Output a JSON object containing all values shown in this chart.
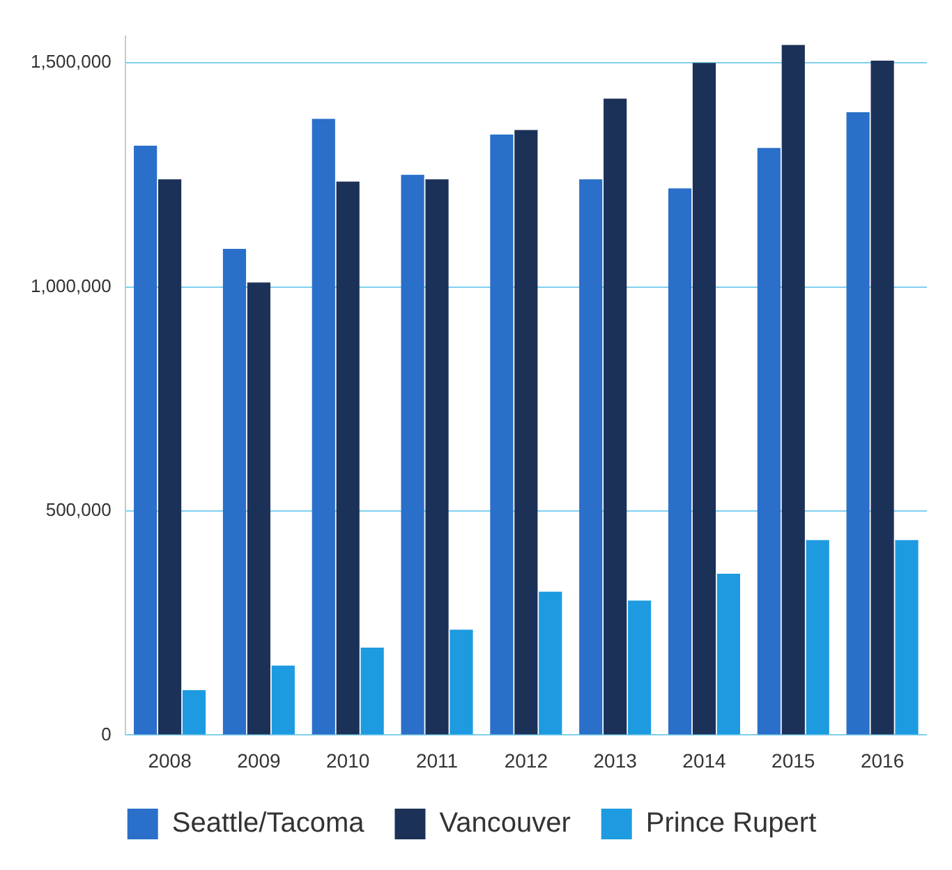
{
  "chart_data": {
    "type": "bar",
    "categories": [
      "2008",
      "2009",
      "2010",
      "2011",
      "2012",
      "2013",
      "2014",
      "2015",
      "2016"
    ],
    "series": [
      {
        "name": "Seattle/Tacoma",
        "color": "#2a6fc9",
        "values": [
          1315000,
          1085000,
          1375000,
          1250000,
          1340000,
          1240000,
          1220000,
          1310000,
          1390000
        ]
      },
      {
        "name": "Vancouver",
        "color": "#1c3157",
        "values": [
          1240000,
          1010000,
          1235000,
          1240000,
          1350000,
          1420000,
          1500000,
          1540000,
          1505000
        ]
      },
      {
        "name": "Prince Rupert",
        "color": "#1e9be0",
        "values": [
          100000,
          155000,
          195000,
          235000,
          320000,
          300000,
          360000,
          435000,
          435000
        ]
      }
    ],
    "ylim": [
      0,
      1560000
    ],
    "yticks": [
      0,
      {
        "value": 500000,
        "label": "500,000"
      },
      {
        "value": 1000000,
        "label": "1,000,000"
      },
      {
        "value": 1500000,
        "label": "1,500,000"
      }
    ],
    "grid": "y",
    "legend": "bottom"
  }
}
